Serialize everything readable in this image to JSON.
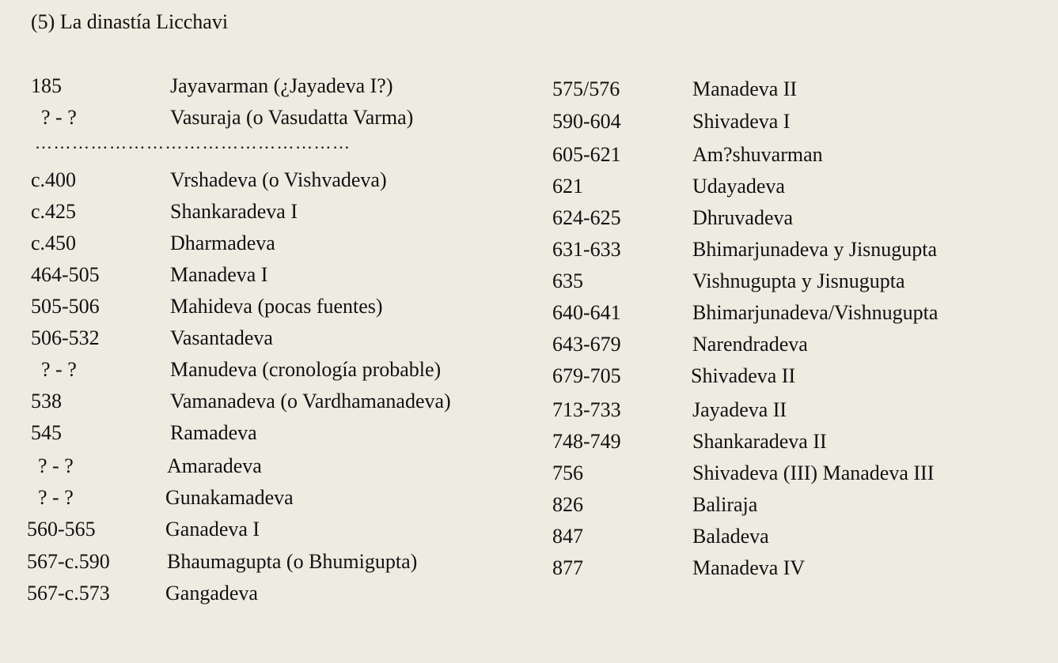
{
  "title": "(5) La dinastía Licchavi",
  "separator": "……………………………………………",
  "left_before_separator": [
    {
      "date": "185",
      "name": "Jayavarman (¿Jayadeva I?)"
    },
    {
      "date": "? - ?",
      "name": "Vasuraja (o Vasudatta Varma)"
    }
  ],
  "left_after_separator": [
    {
      "date": "c.400",
      "name": "Vrshadeva (o Vishvadeva)"
    },
    {
      "date": "c.425",
      "name": "Shankaradeva I"
    },
    {
      "date": "c.450",
      "name": "Dharmadeva"
    },
    {
      "date": "464-505",
      "name": "Manadeva I"
    },
    {
      "date": "505-506",
      "name": "Mahideva (pocas fuentes)"
    },
    {
      "date": "506-532",
      "name": "Vasantadeva"
    },
    {
      "date": "? - ?",
      "name": "Manudeva (cronología probable)"
    },
    {
      "date": "538",
      "name": "Vamanadeva (o Vardhamanadeva)"
    },
    {
      "date": "545",
      "name": "Ramadeva"
    },
    {
      "date": "? - ?",
      "name": "Amaradeva"
    },
    {
      "date": "? - ?",
      "name": "Gunakamadeva"
    },
    {
      "date": "560-565",
      "name": "Ganadeva I"
    },
    {
      "date": "567-c.590",
      "name": "Bhaumagupta (o Bhumigupta)"
    },
    {
      "date": "567-c.573",
      "name": "Gangadeva"
    }
  ],
  "right": [
    {
      "date": "575/576",
      "name": "Manadeva II"
    },
    {
      "date": "590-604",
      "name": "Shivadeva I"
    },
    {
      "date": "605-621",
      "name": "Am?shuvarman"
    },
    {
      "date": "621",
      "name": "Udayadeva"
    },
    {
      "date": "624-625",
      "name": "Dhruvadeva"
    },
    {
      "date": "631-633",
      "name": "Bhimarjunadeva y Jisnugupta"
    },
    {
      "date": "635",
      "name": "Vishnugupta y Jisnugupta"
    },
    {
      "date": "640-641",
      "name": "Bhimarjunadeva/Vishnugupta"
    },
    {
      "date": "643-679",
      "name": "Narendradeva"
    },
    {
      "date": "679-705",
      "name": "Shivadeva II"
    },
    {
      "date": "713-733",
      "name": "Jayadeva II"
    },
    {
      "date": "748-749",
      "name": "Shankaradeva II"
    },
    {
      "date": "756",
      "name": "Shivadeva (III) Manadeva III"
    },
    {
      "date": "826",
      "name": "Baliraja"
    },
    {
      "date": "847",
      "name": "Baladeva"
    },
    {
      "date": "877",
      "name": "Manadeva IV"
    }
  ]
}
